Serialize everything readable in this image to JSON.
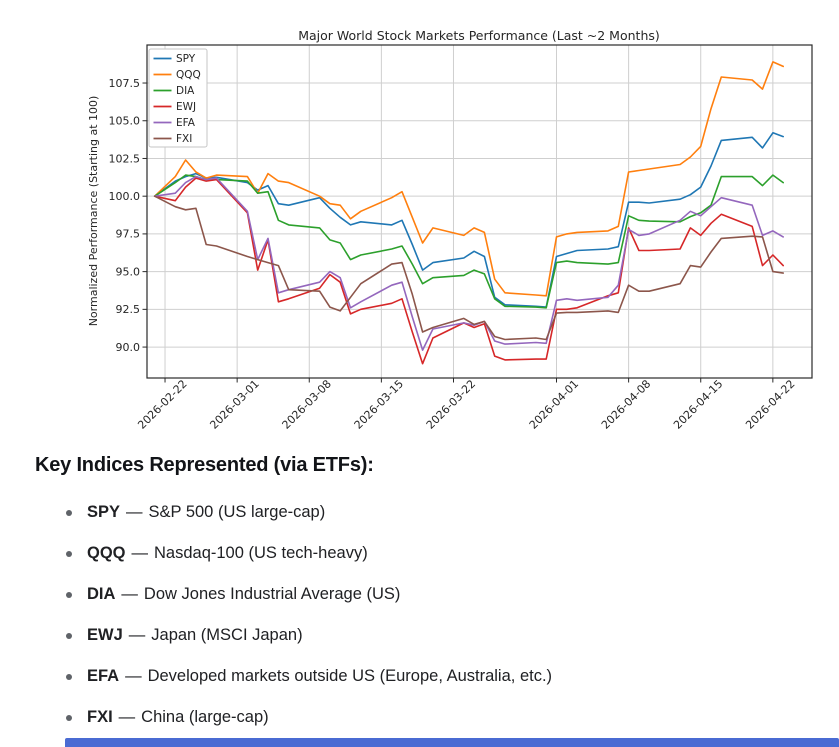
{
  "page": {
    "bottom_bar_color": "#4a6bd3"
  },
  "chart": {
    "title": "Major World Stock Markets Performance (Last ~2 Months)",
    "ylabel": "Normalized Performance (Starting at 100)",
    "ytick_labels": [
      "90.0",
      "92.5",
      "95.0",
      "97.5",
      "100.0",
      "102.5",
      "105.0",
      "107.5"
    ],
    "xtick_labels": [
      "2026-02-22",
      "2026-03-01",
      "2026-03-08",
      "2026-03-15",
      "2026-03-22",
      "2026-04-01",
      "2026-04-08",
      "2026-04-15",
      "2026-04-22"
    ],
    "grid_color": "#cfcfcf",
    "spine_color": "#2a2a2a",
    "legend_entries": [
      "SPY",
      "QQQ",
      "DIA",
      "EWJ",
      "EFA",
      "FXI"
    ]
  },
  "chart_data": {
    "type": "line",
    "title": "Major World Stock Markets Performance (Last ~2 Months)",
    "xlabel": "",
    "ylabel": "Normalized Performance (Starting at 100)",
    "legend_position": "upper left",
    "grid": true,
    "x_start_date": "2026-02-21",
    "xlim_days": [
      -0.75,
      63.8
    ],
    "ylim": [
      87.95,
      110.02
    ],
    "x_dates": [
      "2026-02-21",
      "2026-02-23",
      "2026-02-24",
      "2026-02-25",
      "2026-02-26",
      "2026-02-27",
      "2026-03-02",
      "2026-03-03",
      "2026-03-04",
      "2026-03-05",
      "2026-03-06",
      "2026-03-09",
      "2026-03-10",
      "2026-03-11",
      "2026-03-12",
      "2026-03-13",
      "2026-03-16",
      "2026-03-17",
      "2026-03-18",
      "2026-03-19",
      "2026-03-20",
      "2026-03-23",
      "2026-03-24",
      "2026-03-25",
      "2026-03-26",
      "2026-03-27",
      "2026-03-30",
      "2026-03-31",
      "2026-04-01",
      "2026-04-02",
      "2026-04-03",
      "2026-04-06",
      "2026-04-07",
      "2026-04-08",
      "2026-04-09",
      "2026-04-10",
      "2026-04-13",
      "2026-04-14",
      "2026-04-15",
      "2026-04-16",
      "2026-04-17",
      "2026-04-20",
      "2026-04-21",
      "2026-04-22",
      "2026-04-23"
    ],
    "series": [
      {
        "name": "SPY",
        "color": "#1f77b4",
        "values": [
          100,
          101,
          101.3,
          101.5,
          101.2,
          101.25,
          100.9,
          100.4,
          100.7,
          99.5,
          99.4,
          99.9,
          99.2,
          98.6,
          98.1,
          98.3,
          98.1,
          98.4,
          96.8,
          95.1,
          95.6,
          95.9,
          96.35,
          96,
          93.3,
          92.8,
          92.7,
          92.65,
          96,
          96.2,
          96.4,
          96.5,
          96.65,
          99.6,
          99.6,
          99.55,
          99.8,
          100.1,
          100.6,
          102,
          103.7,
          103.9,
          103.2,
          104.2,
          103.95
        ]
      },
      {
        "name": "QQQ",
        "color": "#ff7f0e",
        "values": [
          100,
          101.3,
          102.4,
          101.6,
          101.2,
          101.4,
          101.3,
          100.2,
          101.5,
          101,
          100.9,
          100,
          99.5,
          99.4,
          98.5,
          99,
          99.9,
          100.3,
          98.6,
          96.9,
          97.9,
          97.4,
          97.9,
          97.6,
          94.5,
          93.6,
          93.45,
          93.4,
          97.3,
          97.5,
          97.6,
          97.7,
          98,
          101.6,
          101.7,
          101.8,
          102.1,
          102.6,
          103.3,
          105.8,
          107.9,
          107.7,
          107.1,
          108.9,
          108.6
        ]
      },
      {
        "name": "DIA",
        "color": "#2ca02c",
        "values": [
          100,
          100.9,
          101.4,
          101.3,
          101.1,
          101.1,
          101,
          100.2,
          100.3,
          98.4,
          98.1,
          97.9,
          97.1,
          96.9,
          95.8,
          96.1,
          96.5,
          96.7,
          95.5,
          94.2,
          94.6,
          94.75,
          95.1,
          94.85,
          93.2,
          92.7,
          92.65,
          92.6,
          95.6,
          95.7,
          95.6,
          95.5,
          95.6,
          98.7,
          98.4,
          98.35,
          98.3,
          98.65,
          98.9,
          99.4,
          101.3,
          101.3,
          100.7,
          101.4,
          100.9
        ]
      },
      {
        "name": "EWJ",
        "color": "#d62728",
        "values": [
          100,
          99.7,
          100.6,
          101.2,
          101,
          101.1,
          98.9,
          95.1,
          97.1,
          93,
          93.2,
          93.9,
          94.8,
          94.3,
          92.2,
          92.5,
          92.9,
          93.2,
          91,
          88.9,
          90.6,
          91.6,
          91.3,
          91.55,
          89.4,
          89.15,
          89.2,
          89.2,
          92.5,
          92.5,
          92.6,
          93.4,
          93.6,
          97.9,
          96.4,
          96.4,
          96.5,
          97.9,
          97.4,
          98.2,
          98.8,
          98,
          95.4,
          96.1,
          95.4
        ]
      },
      {
        "name": "EFA",
        "color": "#9467bd",
        "values": [
          100,
          100.2,
          100.9,
          101.3,
          101.1,
          101.2,
          99,
          95.8,
          97.2,
          93.6,
          93.8,
          94.3,
          95,
          94.6,
          92.6,
          93,
          94.1,
          94.3,
          92,
          89.8,
          91.2,
          91.6,
          91.45,
          91.7,
          90.4,
          90.2,
          90.3,
          90.25,
          93.1,
          93.2,
          93.1,
          93.3,
          94.1,
          97.8,
          97.4,
          97.5,
          98.4,
          99,
          98.7,
          99.3,
          99.9,
          99.4,
          97.4,
          97.7,
          97.3
        ]
      },
      {
        "name": "FXI",
        "color": "#8c564b",
        "values": [
          100,
          99.3,
          99.1,
          99.2,
          96.8,
          96.7,
          96,
          95.8,
          95.6,
          95.4,
          93.8,
          93.7,
          92.65,
          92.4,
          93.3,
          94.2,
          95.5,
          95.6,
          93.5,
          91,
          91.3,
          91.9,
          91.5,
          91.7,
          90.7,
          90.5,
          90.6,
          90.5,
          92.25,
          92.3,
          92.3,
          92.4,
          92.3,
          94.1,
          93.7,
          93.7,
          94.2,
          95.4,
          95.3,
          96.3,
          97.2,
          97.35,
          97.3,
          95,
          94.9
        ]
      }
    ]
  },
  "key_indices": {
    "heading": "Key Indices Represented (via ETFs):",
    "separator": "—",
    "items": [
      {
        "ticker": "SPY",
        "description": "S&P 500 (US large-cap)"
      },
      {
        "ticker": "QQQ",
        "description": "Nasdaq-100 (US tech-heavy)"
      },
      {
        "ticker": "DIA",
        "description": "Dow Jones Industrial Average (US)"
      },
      {
        "ticker": "EWJ",
        "description": "Japan (MSCI Japan)"
      },
      {
        "ticker": "EFA",
        "description": "Developed markets outside US (Europe, Australia, etc.)"
      },
      {
        "ticker": "FXI",
        "description": "China (large-cap)"
      }
    ]
  }
}
